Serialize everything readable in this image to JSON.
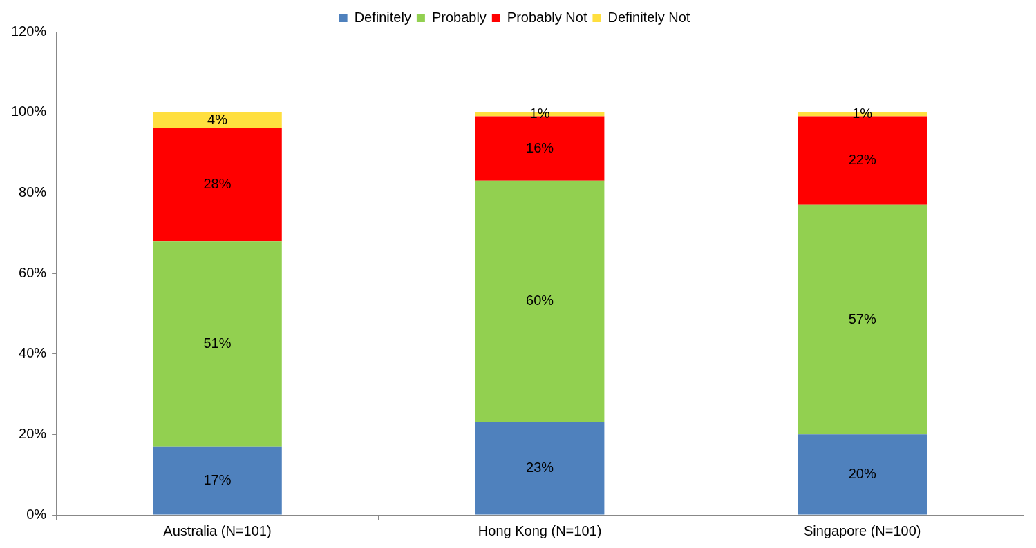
{
  "chart_data": {
    "type": "bar",
    "stacked": true,
    "legend": "top",
    "grid": false,
    "categories": [
      "Australia (N=101)",
      "Hong Kong (N=101)",
      "Singapore (N=100)"
    ],
    "ylim": [
      0,
      120
    ],
    "yticks": [
      {
        "value": 0,
        "label": "0%"
      },
      {
        "value": 20,
        "label": "20%"
      },
      {
        "value": 40,
        "label": "40%"
      },
      {
        "value": 60,
        "label": "60%"
      },
      {
        "value": 80,
        "label": "80%"
      },
      {
        "value": 100,
        "label": "100%"
      },
      {
        "value": 120,
        "label": "120%"
      }
    ],
    "series": [
      {
        "name": "Definitely",
        "color": "#4f81bd",
        "values": [
          17,
          23,
          20
        ],
        "value_labels": [
          "17%",
          "23%",
          "20%"
        ]
      },
      {
        "name": "Probably",
        "color": "#92d050",
        "values": [
          51,
          60,
          57
        ],
        "value_labels": [
          "51%",
          "60%",
          "57%"
        ]
      },
      {
        "name": "Probably Not",
        "color": "#ff0000",
        "values": [
          28,
          16,
          22
        ],
        "value_labels": [
          "28%",
          "16%",
          "22%"
        ]
      },
      {
        "name": "Definitely Not",
        "color": "#ffdf3f",
        "values": [
          4,
          1,
          1
        ],
        "value_labels": [
          "4%",
          "1%",
          "1%"
        ]
      }
    ]
  }
}
